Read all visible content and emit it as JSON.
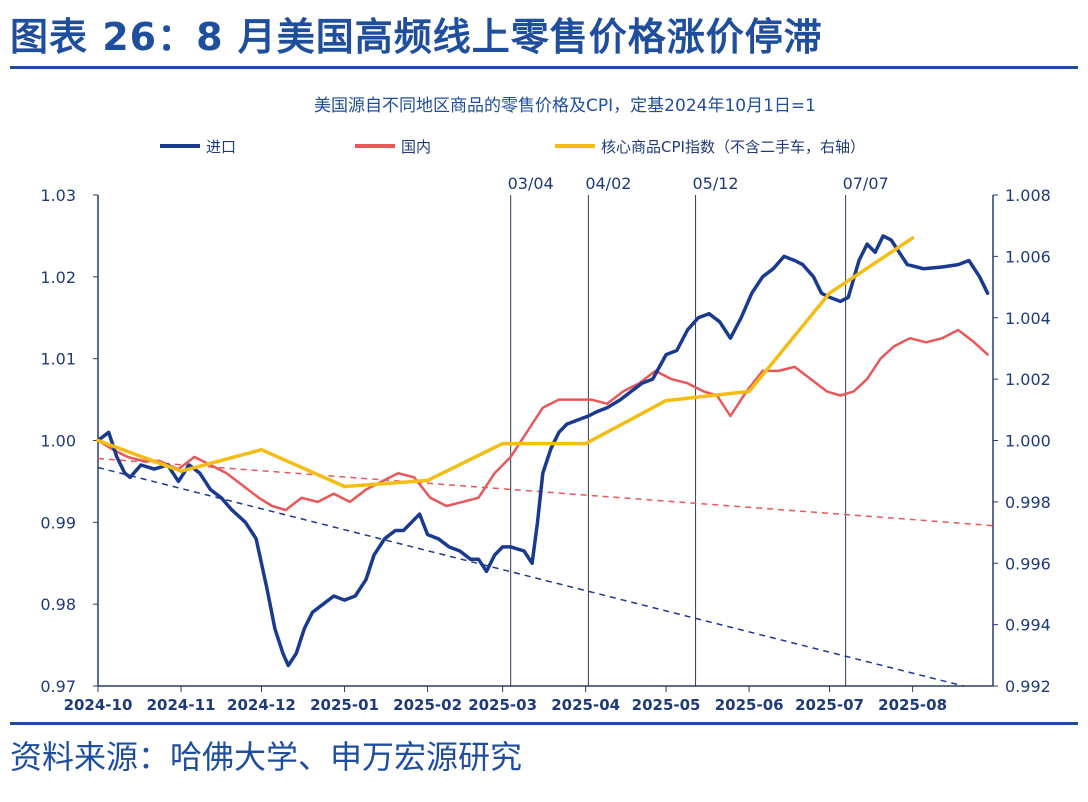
{
  "figure_title": "图表 26：8 月美国高频线上零售价格涨价停滞",
  "source": "资料来源：哈佛大学、申万宏源研究",
  "chart_data": {
    "type": "line",
    "title": "美国源自不同地区商品的零售价格及CPI，定基2024年10月1日=1",
    "legend_position": "top",
    "grid": false,
    "x_ticks": [
      "2024-10",
      "2024-11",
      "2024-12",
      "2025-01",
      "2025-02",
      "2025-03",
      "2025-04",
      "2025-05",
      "2025-06",
      "2025-07",
      "2025-08"
    ],
    "xlim": [
      "2024-10-01",
      "2025-08-31"
    ],
    "ylim_left": [
      0.97,
      1.03
    ],
    "yticks_left": [
      "0.97",
      "0.98",
      "0.99",
      "1.00",
      "1.01",
      "1.02",
      "1.03"
    ],
    "ylim_right": [
      0.992,
      1.008
    ],
    "yticks_right": [
      "0.992",
      "0.994",
      "0.996",
      "0.998",
      "1.000",
      "1.002",
      "1.004",
      "1.006",
      "1.008"
    ],
    "event_lines": [
      {
        "date": "2025-03-04",
        "label": "03/04"
      },
      {
        "date": "2025-04-02",
        "label": "04/02"
      },
      {
        "date": "2025-05-12",
        "label": "05/12"
      },
      {
        "date": "2025-07-07",
        "label": "07/07"
      }
    ],
    "series": [
      {
        "name": "进口",
        "color": "#1a3a8f",
        "axis": "left",
        "points": [
          [
            "2024-10-01",
            1.0
          ],
          [
            "2024-10-05",
            1.001
          ],
          [
            "2024-10-08",
            0.998
          ],
          [
            "2024-10-11",
            0.996
          ],
          [
            "2024-10-13",
            0.9955
          ],
          [
            "2024-10-17",
            0.997
          ],
          [
            "2024-10-22",
            0.9965
          ],
          [
            "2024-10-27",
            0.997
          ],
          [
            "2024-10-31",
            0.995
          ],
          [
            "2024-11-04",
            0.997
          ],
          [
            "2024-11-08",
            0.996
          ],
          [
            "2024-11-12",
            0.994
          ],
          [
            "2024-11-16",
            0.993
          ],
          [
            "2024-11-20",
            0.9915
          ],
          [
            "2024-11-25",
            0.99
          ],
          [
            "2024-11-29",
            0.988
          ],
          [
            "2024-12-03",
            0.982
          ],
          [
            "2024-12-06",
            0.977
          ],
          [
            "2024-12-09",
            0.974
          ],
          [
            "2024-12-11",
            0.9725
          ],
          [
            "2024-12-14",
            0.974
          ],
          [
            "2024-12-17",
            0.977
          ],
          [
            "2024-12-20",
            0.979
          ],
          [
            "2024-12-24",
            0.98
          ],
          [
            "2024-12-28",
            0.981
          ],
          [
            "2025-01-01",
            0.9805
          ],
          [
            "2025-01-05",
            0.981
          ],
          [
            "2025-01-09",
            0.983
          ],
          [
            "2025-01-12",
            0.986
          ],
          [
            "2025-01-16",
            0.988
          ],
          [
            "2025-01-20",
            0.989
          ],
          [
            "2025-01-23",
            0.989
          ],
          [
            "2025-01-26",
            0.99
          ],
          [
            "2025-01-29",
            0.991
          ],
          [
            "2025-02-01",
            0.9885
          ],
          [
            "2025-02-05",
            0.988
          ],
          [
            "2025-02-09",
            0.987
          ],
          [
            "2025-02-13",
            0.9865
          ],
          [
            "2025-02-17",
            0.9855
          ],
          [
            "2025-02-20",
            0.9855
          ],
          [
            "2025-02-23",
            0.984
          ],
          [
            "2025-02-26",
            0.986
          ],
          [
            "2025-03-01",
            0.987
          ],
          [
            "2025-03-04",
            0.987
          ],
          [
            "2025-03-09",
            0.9865
          ],
          [
            "2025-03-12",
            0.985
          ],
          [
            "2025-03-14",
            0.99
          ],
          [
            "2025-03-16",
            0.996
          ],
          [
            "2025-03-19",
            0.999
          ],
          [
            "2025-03-22",
            1.001
          ],
          [
            "2025-03-25",
            1.002
          ],
          [
            "2025-03-29",
            1.0025
          ],
          [
            "2025-04-02",
            1.003
          ],
          [
            "2025-04-05",
            1.0035
          ],
          [
            "2025-04-09",
            1.004
          ],
          [
            "2025-04-14",
            1.005
          ],
          [
            "2025-04-18",
            1.006
          ],
          [
            "2025-04-22",
            1.007
          ],
          [
            "2025-04-26",
            1.0075
          ],
          [
            "2025-05-01",
            1.0105
          ],
          [
            "2025-05-05",
            1.011
          ],
          [
            "2025-05-09",
            1.0135
          ],
          [
            "2025-05-13",
            1.015
          ],
          [
            "2025-05-17",
            1.0155
          ],
          [
            "2025-05-21",
            1.0145
          ],
          [
            "2025-05-25",
            1.0125
          ],
          [
            "2025-05-29",
            1.015
          ],
          [
            "2025-06-02",
            1.018
          ],
          [
            "2025-06-06",
            1.02
          ],
          [
            "2025-06-10",
            1.021
          ],
          [
            "2025-06-14",
            1.0225
          ],
          [
            "2025-06-18",
            1.022
          ],
          [
            "2025-06-21",
            1.0215
          ],
          [
            "2025-06-25",
            1.02
          ],
          [
            "2025-06-28",
            1.018
          ],
          [
            "2025-07-01",
            1.0175
          ],
          [
            "2025-07-05",
            1.017
          ],
          [
            "2025-07-08",
            1.0175
          ],
          [
            "2025-07-12",
            1.022
          ],
          [
            "2025-07-15",
            1.024
          ],
          [
            "2025-07-18",
            1.023
          ],
          [
            "2025-07-21",
            1.025
          ],
          [
            "2025-07-24",
            1.0245
          ],
          [
            "2025-07-27",
            1.023
          ],
          [
            "2025-07-30",
            1.0215
          ],
          [
            "2025-08-05",
            1.021
          ],
          [
            "2025-08-12",
            1.0212
          ],
          [
            "2025-08-18",
            1.0215
          ],
          [
            "2025-08-22",
            1.022
          ],
          [
            "2025-08-26",
            1.02
          ],
          [
            "2025-08-29",
            1.018
          ]
        ]
      },
      {
        "name": "国内",
        "color": "#e8585a",
        "axis": "left",
        "points": [
          [
            "2024-10-01",
            1.0
          ],
          [
            "2024-10-06",
            0.999
          ],
          [
            "2024-10-12",
            0.998
          ],
          [
            "2024-10-18",
            0.9975
          ],
          [
            "2024-10-24",
            0.9975
          ],
          [
            "2024-10-31",
            0.9965
          ],
          [
            "2024-11-06",
            0.998
          ],
          [
            "2024-11-12",
            0.997
          ],
          [
            "2024-11-18",
            0.996
          ],
          [
            "2024-11-24",
            0.9945
          ],
          [
            "2024-11-30",
            0.993
          ],
          [
            "2024-12-05",
            0.992
          ],
          [
            "2024-12-10",
            0.9915
          ],
          [
            "2024-12-16",
            0.993
          ],
          [
            "2024-12-22",
            0.9925
          ],
          [
            "2024-12-28",
            0.9935
          ],
          [
            "2025-01-03",
            0.9925
          ],
          [
            "2025-01-09",
            0.994
          ],
          [
            "2025-01-15",
            0.995
          ],
          [
            "2025-01-21",
            0.996
          ],
          [
            "2025-01-27",
            0.9955
          ],
          [
            "2025-02-02",
            0.993
          ],
          [
            "2025-02-08",
            0.992
          ],
          [
            "2025-02-14",
            0.9925
          ],
          [
            "2025-02-20",
            0.993
          ],
          [
            "2025-02-26",
            0.996
          ],
          [
            "2025-03-04",
            0.998
          ],
          [
            "2025-03-08",
            1.0
          ],
          [
            "2025-03-12",
            1.002
          ],
          [
            "2025-03-16",
            1.004
          ],
          [
            "2025-03-22",
            1.005
          ],
          [
            "2025-03-28",
            1.005
          ],
          [
            "2025-04-03",
            1.005
          ],
          [
            "2025-04-09",
            1.0045
          ],
          [
            "2025-04-15",
            1.006
          ],
          [
            "2025-04-21",
            1.007
          ],
          [
            "2025-04-27",
            1.0085
          ],
          [
            "2025-05-03",
            1.0075
          ],
          [
            "2025-05-09",
            1.007
          ],
          [
            "2025-05-15",
            1.006
          ],
          [
            "2025-05-20",
            1.0055
          ],
          [
            "2025-05-25",
            1.003
          ],
          [
            "2025-05-31",
            1.006
          ],
          [
            "2025-06-06",
            1.0085
          ],
          [
            "2025-06-12",
            1.0085
          ],
          [
            "2025-06-18",
            1.009
          ],
          [
            "2025-06-24",
            1.0075
          ],
          [
            "2025-06-30",
            1.006
          ],
          [
            "2025-07-05",
            1.0055
          ],
          [
            "2025-07-10",
            1.006
          ],
          [
            "2025-07-15",
            1.0075
          ],
          [
            "2025-07-20",
            1.01
          ],
          [
            "2025-07-25",
            1.0115
          ],
          [
            "2025-07-31",
            1.0125
          ],
          [
            "2025-08-06",
            1.012
          ],
          [
            "2025-08-12",
            1.0125
          ],
          [
            "2025-08-18",
            1.0135
          ],
          [
            "2025-08-24",
            1.012
          ],
          [
            "2025-08-29",
            1.0105
          ]
        ]
      },
      {
        "name": "核心商品CPI指数（不含二手车，右轴）",
        "color": "#f5bd14",
        "axis": "right",
        "points": [
          [
            "2024-10-01",
            1.0
          ],
          [
            "2024-11-01",
            0.999
          ],
          [
            "2024-12-01",
            0.9997
          ],
          [
            "2025-01-01",
            0.9985
          ],
          [
            "2025-02-01",
            0.9987
          ],
          [
            "2025-03-01",
            0.9999
          ],
          [
            "2025-04-01",
            0.9999
          ],
          [
            "2025-05-01",
            1.0013
          ],
          [
            "2025-06-01",
            1.0016
          ],
          [
            "2025-07-01",
            1.0048
          ],
          [
            "2025-08-01",
            1.0066
          ]
        ]
      }
    ],
    "trend_lines": [
      {
        "series": "进口",
        "color": "#1a3a8f",
        "from": [
          "2024-10-01",
          0.9967
        ],
        "to": [
          "2025-08-20",
          0.97
        ]
      },
      {
        "series": "国内",
        "color": "#e8585a",
        "from": [
          "2024-10-01",
          0.9978
        ],
        "to": [
          "2025-08-31",
          0.9896
        ]
      }
    ]
  }
}
